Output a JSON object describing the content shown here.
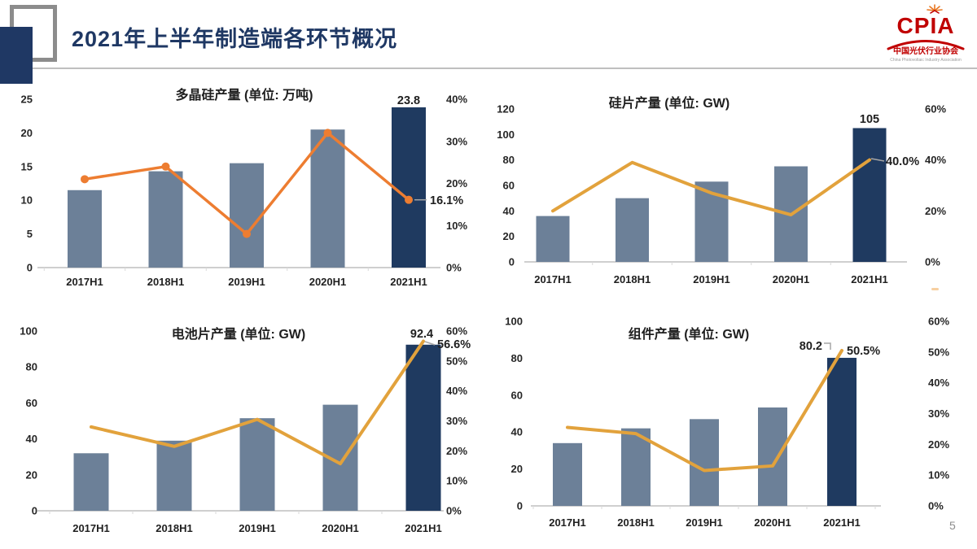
{
  "page": {
    "title": "2021年上半年制造端各环节概况",
    "page_number": "5"
  },
  "logo": {
    "acronym": "CPIA",
    "name_cn": "中国光伏行业协会",
    "name_en": "China Photovoltaic Industry Association"
  },
  "colors": {
    "navy": "#1F3864",
    "bar": "#6C8098",
    "bar_highlight": "#1F3A60",
    "logo_red": "#C00000",
    "axis_text": "#262626",
    "label_text": "#1F1F1F",
    "baseline": "#CFCFCF",
    "tick": "#D9D9D9",
    "leader": "#A6A6A6"
  },
  "chart_data": [
    {
      "type": "bar",
      "combo": "bar+line",
      "title": "多晶硅产量 (单位: 万吨)",
      "categories": [
        "2017H1",
        "2018H1",
        "2019H1",
        "2020H1",
        "2021H1"
      ],
      "bar_values": [
        11.5,
        14.3,
        15.5,
        20.5,
        23.8
      ],
      "line_values_pct": [
        21,
        24,
        8,
        32,
        16.1
      ],
      "left_axis": {
        "max": 25,
        "ticks": [
          "25",
          "20",
          "15",
          "10",
          "5",
          "0"
        ]
      },
      "right_axis": {
        "max": 40,
        "ticks": [
          "40%",
          "30%",
          "20%",
          "10%",
          "0%"
        ]
      },
      "end_labels": {
        "bar": "23.8",
        "line": "16.1%"
      },
      "line_markers": true,
      "line_color": "#ED7D31"
    },
    {
      "type": "bar",
      "combo": "bar+line",
      "title": "硅片产量 (单位: GW)",
      "categories": [
        "2017H1",
        "2018H1",
        "2019H1",
        "2020H1",
        "2021H1"
      ],
      "bar_values": [
        36,
        50,
        63,
        75,
        105
      ],
      "line_values_pct": [
        20,
        39,
        27,
        18.5,
        40
      ],
      "left_axis": {
        "max": 120,
        "ticks": [
          "120",
          "100",
          "80",
          "60",
          "40",
          "20",
          "0"
        ]
      },
      "right_axis": {
        "max": 60,
        "ticks": [
          "60%",
          "40%",
          "20%",
          "0%"
        ]
      },
      "end_labels": {
        "bar": "105",
        "line": "40.0%"
      },
      "line_markers": false,
      "line_color": "#E2A23C"
    },
    {
      "type": "bar",
      "combo": "bar+line",
      "title": "电池片产量 (单位: GW)",
      "categories": [
        "2017H1",
        "2018H1",
        "2019H1",
        "2020H1",
        "2021H1"
      ],
      "bar_values": [
        32,
        39,
        51.5,
        59,
        92.4
      ],
      "line_values_pct": [
        28,
        21.5,
        30.5,
        15.7,
        56.6
      ],
      "left_axis": {
        "max": 100,
        "ticks": [
          "100",
          "80",
          "60",
          "40",
          "20",
          "0"
        ]
      },
      "right_axis": {
        "max": 60,
        "ticks": [
          "60%",
          "50%",
          "40%",
          "30%",
          "20%",
          "10%",
          "0%"
        ]
      },
      "end_labels": {
        "bar": "92.4",
        "line": "56.6%"
      },
      "line_markers": false,
      "line_color": "#E2A23C"
    },
    {
      "type": "bar",
      "combo": "bar+line",
      "title": "组件产量 (单位: GW)",
      "categories": [
        "2017H1",
        "2018H1",
        "2019H1",
        "2020H1",
        "2021H1"
      ],
      "bar_values": [
        34,
        42,
        47,
        53.3,
        80.2
      ],
      "line_values_pct": [
        25.5,
        23.5,
        11.5,
        13,
        50.5
      ],
      "left_axis": {
        "max": 100,
        "ticks": [
          "100",
          "80",
          "60",
          "40",
          "20",
          "0"
        ]
      },
      "right_axis": {
        "max": 60,
        "ticks": [
          "60%",
          "50%",
          "40%",
          "30%",
          "20%",
          "10%",
          "0%"
        ]
      },
      "end_labels": {
        "bar": "80.2",
        "line": "50.5%"
      },
      "line_markers": false,
      "line_color": "#E2A23C"
    }
  ]
}
